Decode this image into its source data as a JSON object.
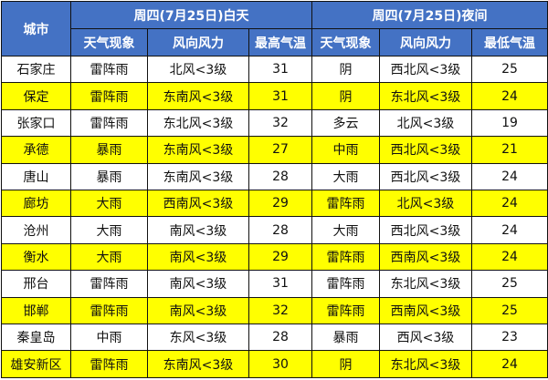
{
  "header": {
    "city": "城市",
    "day": "周四(7月25日)白天",
    "night": "周四(7月25日)夜间",
    "day_cols": [
      "天气现象",
      "风向风力",
      "最高气温"
    ],
    "night_cols": [
      "天气现象",
      "风向风力",
      "最低气温"
    ]
  },
  "colors": {
    "header_bg": "#4472C4",
    "highlight": "#FFFF00"
  },
  "rows": [
    {
      "city": "石家庄",
      "day_weather": "雷阵雨",
      "day_wind": "北风<3级",
      "high": "31",
      "night_weather": "阴",
      "night_wind": "西北风<3级",
      "low": "25",
      "highlight": false
    },
    {
      "city": "保定",
      "day_weather": "雷阵雨",
      "day_wind": "东南风<3级",
      "high": "31",
      "night_weather": "阴",
      "night_wind": "东北风<3级",
      "low": "24",
      "highlight": true
    },
    {
      "city": "张家口",
      "day_weather": "雷阵雨",
      "day_wind": "东北风<3级",
      "high": "32",
      "night_weather": "多云",
      "night_wind": "北风<3级",
      "low": "19",
      "highlight": false
    },
    {
      "city": "承德",
      "day_weather": "暴雨",
      "day_wind": "东南风<3级",
      "high": "27",
      "night_weather": "中雨",
      "night_wind": "西北风<3级",
      "low": "21",
      "highlight": true
    },
    {
      "city": "唐山",
      "day_weather": "暴雨",
      "day_wind": "东南风<3级",
      "high": "28",
      "night_weather": "大雨",
      "night_wind": "西北风<3级",
      "low": "24",
      "highlight": false
    },
    {
      "city": "廊坊",
      "day_weather": "大雨",
      "day_wind": "西南风<3级",
      "high": "29",
      "night_weather": "雷阵雨",
      "night_wind": "北风<3级",
      "low": "24",
      "highlight": true
    },
    {
      "city": "沧州",
      "day_weather": "大雨",
      "day_wind": "南风<3级",
      "high": "28",
      "night_weather": "大雨",
      "night_wind": "西北风<3级",
      "low": "24",
      "highlight": false
    },
    {
      "city": "衡水",
      "day_weather": "大雨",
      "day_wind": "南风<3级",
      "high": "29",
      "night_weather": "雷阵雨",
      "night_wind": "西南风<3级",
      "low": "24",
      "highlight": true
    },
    {
      "city": "邢台",
      "day_weather": "雷阵雨",
      "day_wind": "南风<3级",
      "high": "31",
      "night_weather": "雷阵雨",
      "night_wind": "东北风<3级",
      "low": "25",
      "highlight": false
    },
    {
      "city": "邯郸",
      "day_weather": "雷阵雨",
      "day_wind": "南风<3级",
      "high": "32",
      "night_weather": "雷阵雨",
      "night_wind": "西南风<3级",
      "low": "25",
      "highlight": true
    },
    {
      "city": "秦皇岛",
      "day_weather": "中雨",
      "day_wind": "东风<3级",
      "high": "28",
      "night_weather": "暴雨",
      "night_wind": "西风<3级",
      "low": "23",
      "highlight": false
    },
    {
      "city": "雄安新区",
      "day_weather": "雷阵雨",
      "day_wind": "东南风<3级",
      "high": "30",
      "night_weather": "阴",
      "night_wind": "东北风<3级",
      "low": "24",
      "highlight": true
    }
  ]
}
